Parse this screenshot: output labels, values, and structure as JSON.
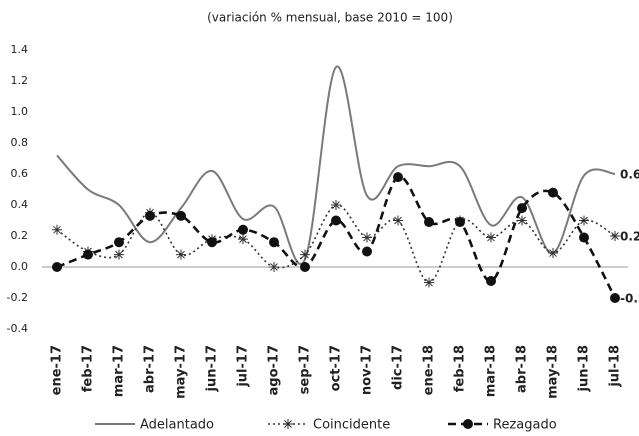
{
  "chart_data": {
    "type": "line",
    "subtitle": "(variación % mensual, base 2010 = 100)",
    "categories": [
      "ene-17",
      "feb-17",
      "mar-17",
      "abr-17",
      "may-17",
      "jun-17",
      "jul-17",
      "ago-17",
      "sep-17",
      "oct-17",
      "nov-17",
      "dic-17",
      "ene-18",
      "feb-18",
      "mar-18",
      "abr-18",
      "may-18",
      "jun-18",
      "jul-18"
    ],
    "series": [
      {
        "name": "Adelantado",
        "color": "#7a7a7a",
        "dash": "solid",
        "marker": "none",
        "end_label": true,
        "values": [
          0.72,
          0.5,
          0.4,
          0.16,
          0.38,
          0.62,
          0.31,
          0.39,
          0.05,
          1.29,
          0.46,
          0.65,
          0.65,
          0.65,
          0.27,
          0.45,
          0.09,
          0.59,
          0.6
        ]
      },
      {
        "name": "Coincidente",
        "color": "#333333",
        "dash": "dotted",
        "marker": "asterisk",
        "end_label": true,
        "values": [
          0.24,
          0.1,
          0.08,
          0.35,
          0.08,
          0.18,
          0.18,
          0.0,
          0.08,
          0.4,
          0.19,
          0.3,
          -0.1,
          0.3,
          0.19,
          0.3,
          0.09,
          0.3,
          0.2
        ]
      },
      {
        "name": "Rezagado",
        "color": "#111111",
        "dash": "dashed",
        "marker": "circle",
        "end_label": true,
        "values": [
          0.0,
          0.08,
          0.16,
          0.33,
          0.33,
          0.16,
          0.24,
          0.16,
          0.0,
          0.3,
          0.1,
          0.58,
          0.29,
          0.29,
          -0.09,
          0.38,
          0.48,
          0.19,
          -0.2
        ]
      }
    ],
    "ylim": [
      -0.4,
      1.4
    ],
    "yticks": [
      -0.4,
      -0.2,
      {
        "value": 0,
        "label": "0.0"
      },
      0.2,
      0.4,
      0.6,
      0.8,
      {
        "value": 1,
        "label": "1.0"
      },
      1.2,
      1.4
    ],
    "smooth": true,
    "legend": "bottom"
  }
}
